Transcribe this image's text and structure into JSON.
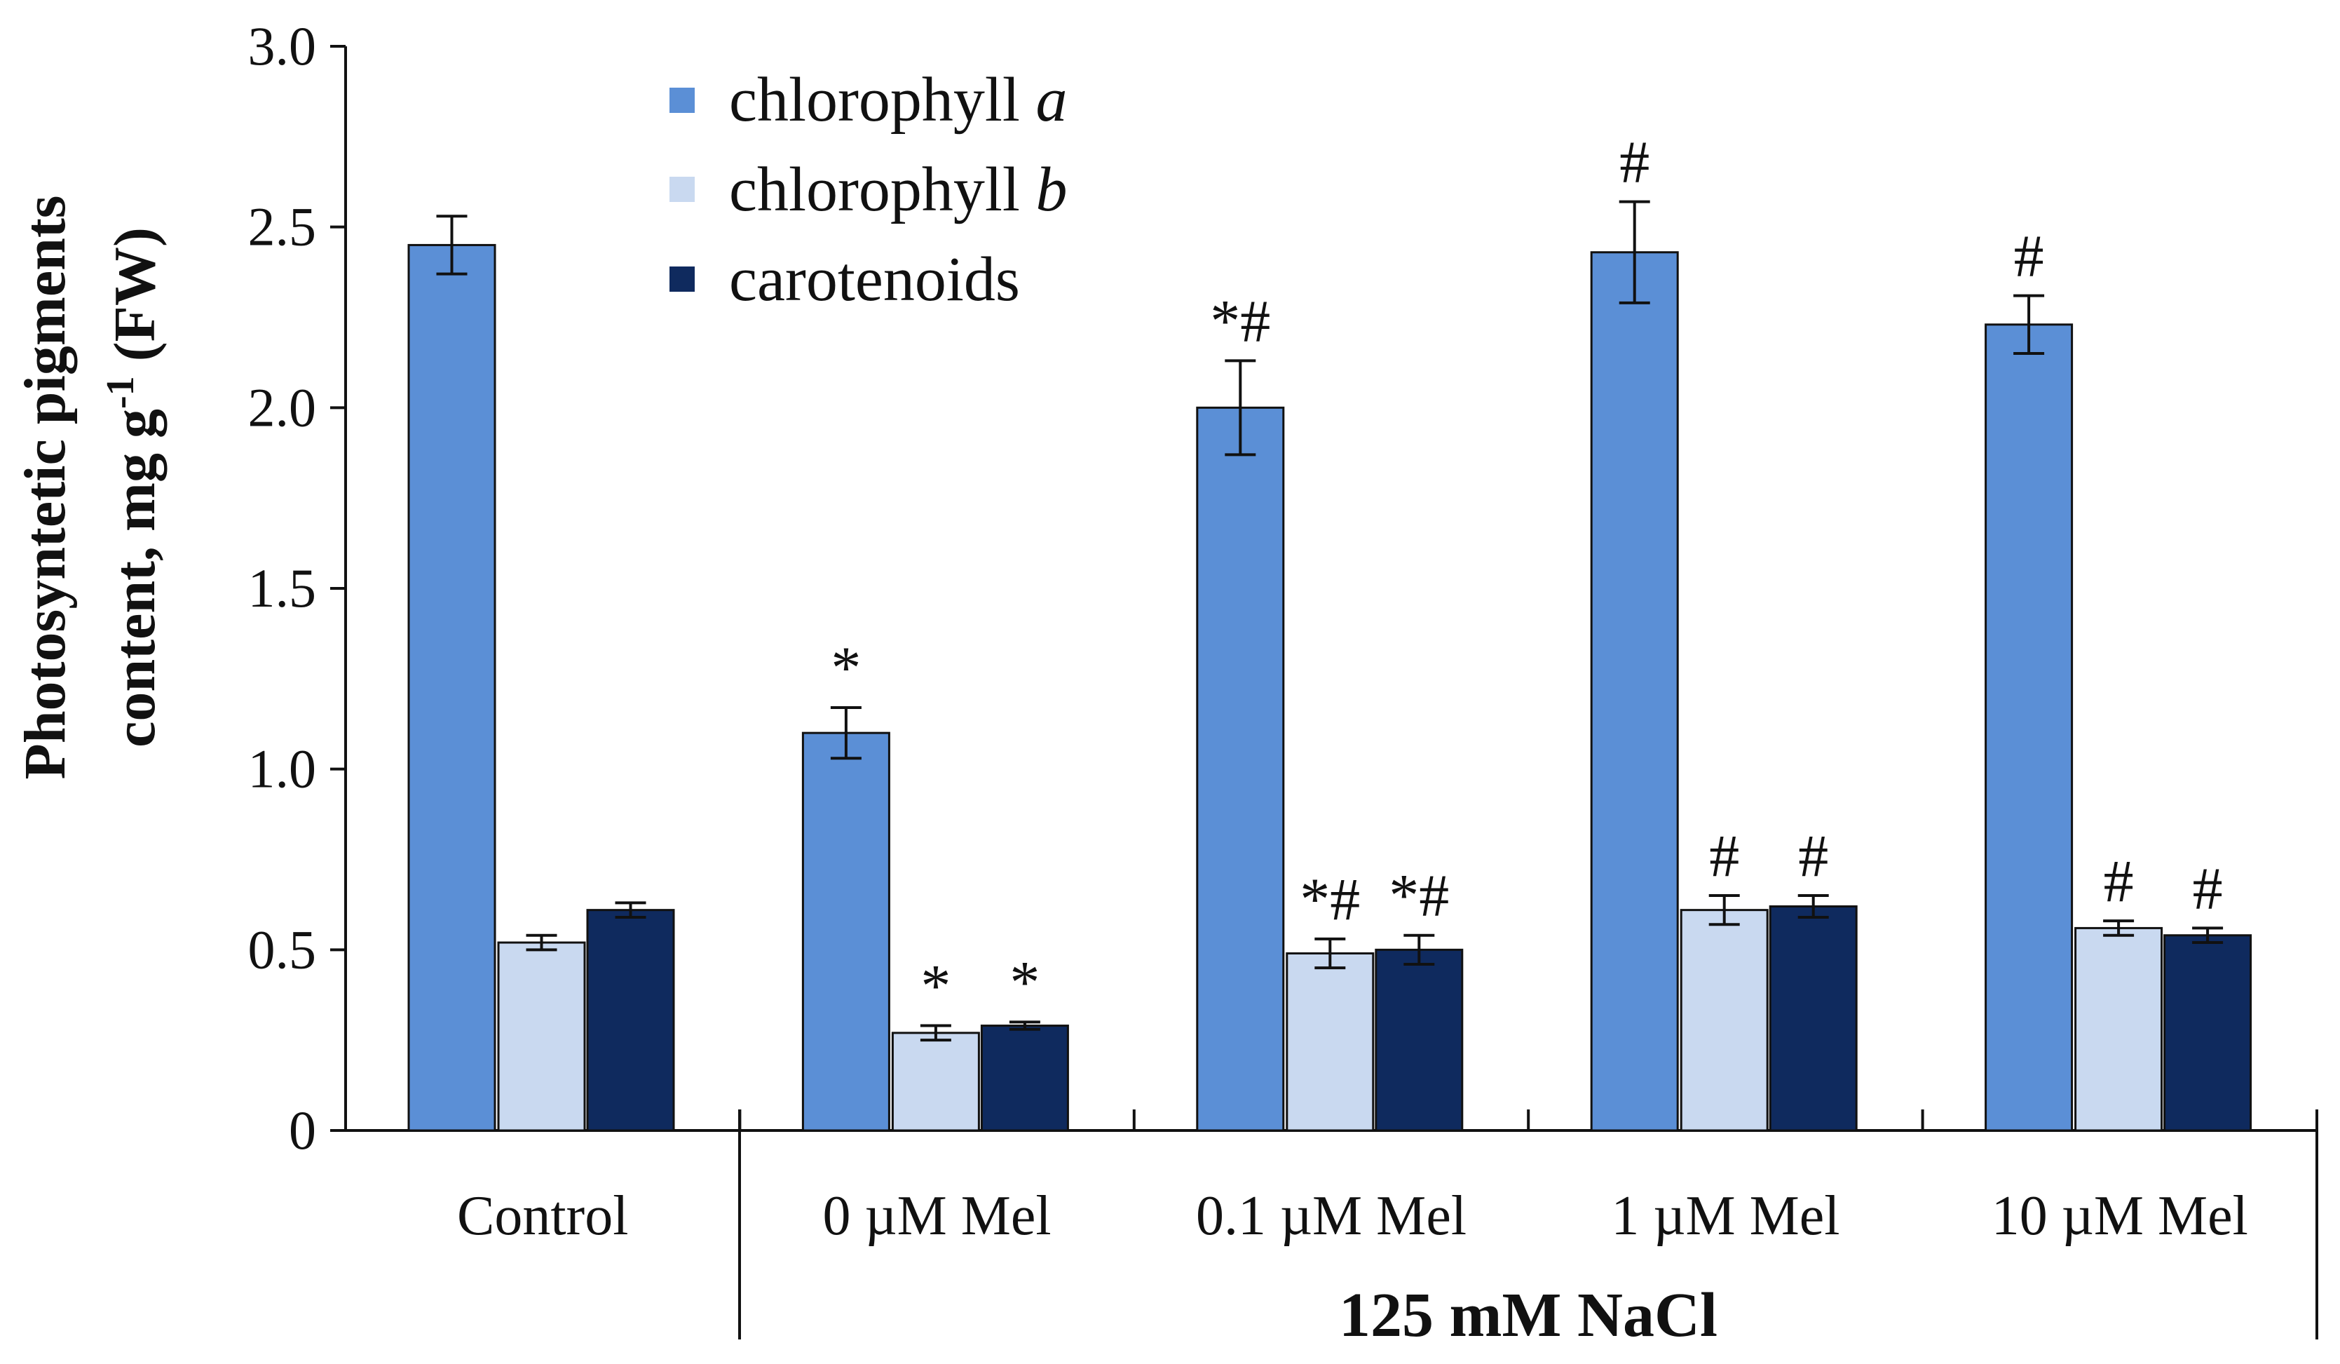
{
  "chart_data": {
    "type": "bar",
    "title": "",
    "xlabel": "",
    "ylabel_line1": "Photosyntetic pigments",
    "ylabel_line2_pre": "content, mg g",
    "ylabel_line2_sup": "-1",
    "ylabel_line2_post": " (FW)",
    "ylim": [
      0,
      3.0
    ],
    "yticks": [
      0,
      0.5,
      1.0,
      1.5,
      2.0,
      2.5,
      3.0
    ],
    "ytick_labels": [
      "0",
      "0.5",
      "1.0",
      "1.5",
      "2.0",
      "2.5",
      "3.0"
    ],
    "categories": [
      "Control",
      "0 µM Mel",
      "0.1 µM Mel",
      "1 µM Mel",
      "10 µM Mel"
    ],
    "group_label": "125 mM NaCl",
    "legend_position": "top-left",
    "series": [
      {
        "name_main": "chlorophyll ",
        "name_italic": "a",
        "color": "#5b8fd6",
        "values": [
          2.45,
          1.1,
          2.0,
          2.43,
          2.23
        ],
        "errors": [
          0.08,
          0.07,
          0.13,
          0.14,
          0.08
        ],
        "significance": [
          "",
          "*",
          "*#",
          "#",
          "#"
        ]
      },
      {
        "name_main": "chlorophyll ",
        "name_italic": "b",
        "color": "#c9d9f0",
        "values": [
          0.52,
          0.27,
          0.49,
          0.61,
          0.56
        ],
        "errors": [
          0.02,
          0.02,
          0.04,
          0.04,
          0.02
        ],
        "significance": [
          "",
          "*",
          "*#",
          "#",
          "#"
        ]
      },
      {
        "name_main": "carotenoids",
        "name_italic": "",
        "color": "#0f2a5e",
        "values": [
          0.61,
          0.29,
          0.5,
          0.62,
          0.54
        ],
        "errors": [
          0.02,
          0.01,
          0.04,
          0.03,
          0.02
        ],
        "significance": [
          "",
          "*",
          "*#",
          "#",
          "#"
        ]
      }
    ]
  }
}
